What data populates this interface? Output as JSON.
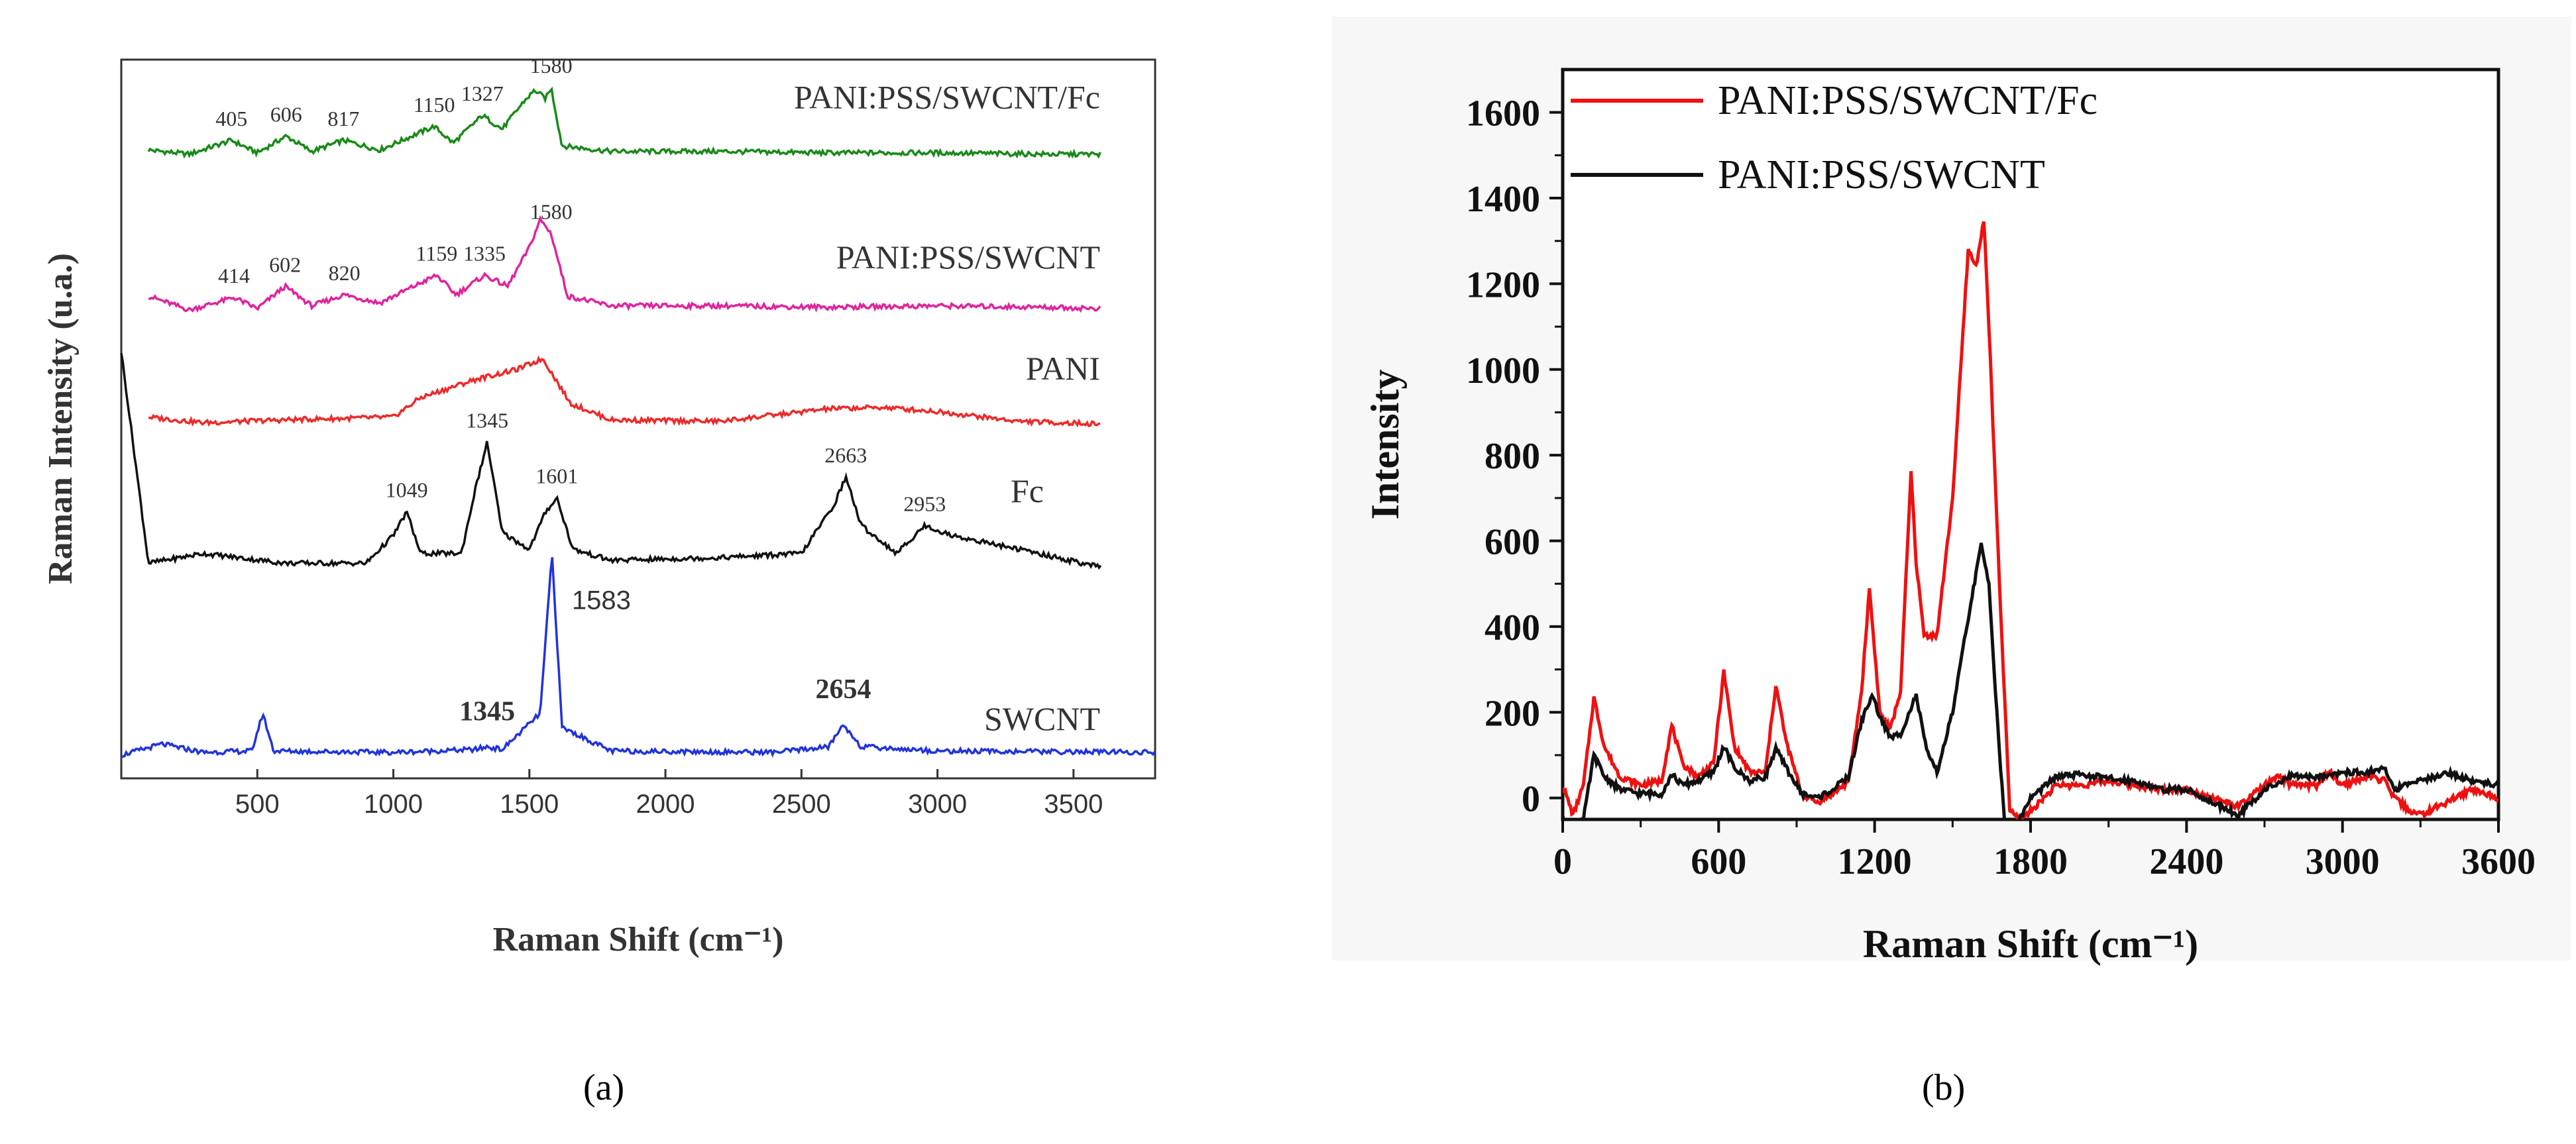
{
  "panel_labels": {
    "a": "(a)",
    "b": "(b)"
  },
  "chart_data": [
    {
      "type": "line",
      "panel": "a",
      "title": "",
      "xlabel": "Raman Shift (cm⁻¹)",
      "ylabel": "Raman Intensity (u.a.)",
      "xlim": [
        0,
        3800
      ],
      "x_ticks": [
        500,
        1000,
        1500,
        2000,
        2500,
        3000,
        3500
      ],
      "y_ticks": [],
      "stacked": true,
      "series": [
        {
          "name": "PANI:PSS/SWCNT/Fc",
          "color": "#1a8a1a",
          "baseline": 4.3,
          "x": [
            100,
            250,
            405,
            500,
            606,
            700,
            817,
            950,
            1150,
            1220,
            1327,
            1400,
            1480,
            1520,
            1560,
            1580,
            1620,
            1800,
            2200,
            2600,
            3000,
            3400,
            3600
          ],
          "y": [
            0.05,
            0.02,
            0.12,
            0.03,
            0.15,
            0.04,
            0.12,
            0.05,
            0.22,
            0.1,
            0.3,
            0.2,
            0.4,
            0.48,
            0.42,
            0.5,
            0.08,
            0.04,
            0.04,
            0.03,
            0.03,
            0.02,
            0.02
          ],
          "peak_labels": [
            {
              "x": 405,
              "text": "405"
            },
            {
              "x": 606,
              "text": "606"
            },
            {
              "x": 817,
              "text": "817"
            },
            {
              "x": 1150,
              "text": "1150"
            },
            {
              "x": 1327,
              "text": "1327"
            },
            {
              "x": 1580,
              "text": "1580"
            }
          ]
        },
        {
          "name": "PANI:PSS/SWCNT",
          "color": "#e0249e",
          "baseline": 3.15,
          "x": [
            100,
            250,
            414,
            500,
            602,
            700,
            820,
            950,
            1159,
            1230,
            1335,
            1420,
            1500,
            1540,
            1580,
            1640,
            1800,
            2200,
            2600,
            3000,
            3400,
            3600
          ],
          "y": [
            0.15,
            0.05,
            0.14,
            0.06,
            0.22,
            0.08,
            0.16,
            0.1,
            0.3,
            0.16,
            0.3,
            0.22,
            0.5,
            0.7,
            0.6,
            0.15,
            0.08,
            0.08,
            0.07,
            0.08,
            0.07,
            0.06
          ],
          "peak_labels": [
            {
              "x": 414,
              "text": "414"
            },
            {
              "x": 602,
              "text": "602"
            },
            {
              "x": 820,
              "text": "820"
            },
            {
              "x": 1159,
              "text": "1159"
            },
            {
              "x": 1335,
              "text": "1335"
            },
            {
              "x": 1580,
              "text": "1580"
            }
          ]
        },
        {
          "name": "PANI",
          "color": "#ee2a2a",
          "baseline": 2.35,
          "x": [
            100,
            300,
            600,
            800,
            1000,
            1100,
            1300,
            1450,
            1550,
            1650,
            1800,
            2200,
            2600,
            2800,
            3000,
            3300,
            3600
          ],
          "y": [
            0.08,
            0.04,
            0.06,
            0.07,
            0.08,
            0.22,
            0.35,
            0.42,
            0.5,
            0.18,
            0.06,
            0.05,
            0.14,
            0.15,
            0.12,
            0.05,
            0.03
          ],
          "peak_labels": []
        },
        {
          "name": "Fc",
          "color": "#111111",
          "baseline": 1.3,
          "x": [
            0,
            100,
            300,
            600,
            900,
            1000,
            1049,
            1100,
            1250,
            1300,
            1345,
            1400,
            1500,
            1560,
            1601,
            1660,
            1800,
            2200,
            2500,
            2620,
            2663,
            2720,
            2850,
            2953,
            3050,
            3300,
            3600
          ],
          "y": [
            1.6,
            0.08,
            0.15,
            0.08,
            0.08,
            0.28,
            0.45,
            0.15,
            0.15,
            0.6,
            0.95,
            0.3,
            0.18,
            0.45,
            0.55,
            0.18,
            0.1,
            0.12,
            0.15,
            0.5,
            0.7,
            0.35,
            0.15,
            0.35,
            0.28,
            0.18,
            0.05
          ],
          "peak_labels": [
            {
              "x": 1049,
              "text": "1049"
            },
            {
              "x": 1345,
              "text": "1345"
            },
            {
              "x": 1601,
              "text": "1601"
            },
            {
              "x": 2663,
              "text": "2663"
            },
            {
              "x": 2953,
              "text": "2953"
            }
          ]
        },
        {
          "name": "SWCNT",
          "color": "#2233dd",
          "baseline": 0.0,
          "x": [
            0,
            150,
            300,
            480,
            520,
            560,
            1000,
            1300,
            1345,
            1400,
            1540,
            1583,
            1620,
            1800,
            2400,
            2600,
            2654,
            2720,
            3000,
            3800
          ],
          "y": [
            0.0,
            0.08,
            0.02,
            0.03,
            0.3,
            0.03,
            0.02,
            0.04,
            0.06,
            0.04,
            0.3,
            1.45,
            0.2,
            0.03,
            0.02,
            0.06,
            0.22,
            0.06,
            0.03,
            0.02
          ],
          "peak_labels": [
            {
              "x": 1345,
              "text": "1345"
            },
            {
              "x": 1583,
              "text": "1583"
            },
            {
              "x": 2654,
              "text": "2654"
            }
          ]
        }
      ]
    },
    {
      "type": "line",
      "panel": "b",
      "title": "",
      "xlabel": "Raman Shift (cm⁻¹)",
      "ylabel": "Intensity",
      "xlim": [
        0,
        3600
      ],
      "ylim": [
        -50,
        1700
      ],
      "x_ticks": [
        0,
        600,
        1200,
        1800,
        2400,
        3000,
        3600
      ],
      "y_ticks": [
        0,
        200,
        400,
        600,
        800,
        1000,
        1200,
        1400,
        1600
      ],
      "legend_position": "top-left",
      "series": [
        {
          "name": "PANI:PSS/SWCNT/Fc",
          "color": "#ee1111",
          "x": [
            0,
            40,
            80,
            120,
            160,
            220,
            300,
            380,
            420,
            460,
            520,
            580,
            620,
            660,
            720,
            780,
            820,
            860,
            920,
            980,
            1040,
            1100,
            1150,
            1180,
            1220,
            1260,
            1300,
            1340,
            1360,
            1390,
            1440,
            1500,
            1560,
            1590,
            1620,
            1640,
            1680,
            1720,
            1760,
            1800,
            1900,
            2000,
            2100,
            2200,
            2300,
            2400,
            2500,
            2600,
            2700,
            2760,
            2800,
            2900,
            2950,
            3000,
            3100,
            3160,
            3200,
            3260,
            3300,
            3400,
            3500,
            3600
          ],
          "y": [
            30,
            -40,
            30,
            235,
            120,
            50,
            30,
            40,
            170,
            80,
            50,
            80,
            295,
            120,
            60,
            60,
            265,
            130,
            10,
            -10,
            10,
            40,
            250,
            490,
            200,
            160,
            250,
            760,
            550,
            380,
            380,
            700,
            1280,
            1240,
            1350,
            1100,
            500,
            -30,
            -50,
            -30,
            30,
            30,
            40,
            30,
            20,
            20,
            0,
            -20,
            30,
            50,
            30,
            30,
            60,
            30,
            50,
            40,
            0,
            -30,
            -40,
            -10,
            20,
            0
          ]
        },
        {
          "name": "PANI:PSS/SWCNT",
          "color": "#111111",
          "x": [
            0,
            40,
            80,
            120,
            160,
            220,
            300,
            380,
            420,
            460,
            520,
            580,
            620,
            660,
            720,
            780,
            820,
            860,
            920,
            980,
            1040,
            1100,
            1150,
            1190,
            1220,
            1260,
            1300,
            1360,
            1400,
            1440,
            1500,
            1560,
            1610,
            1640,
            1670,
            1700,
            1750,
            1800,
            1900,
            2000,
            2100,
            2200,
            2300,
            2400,
            2500,
            2600,
            2700,
            2800,
            2900,
            3000,
            3100,
            3160,
            3200,
            3300,
            3400,
            3500,
            3600
          ],
          "y": [
            -60,
            -60,
            -50,
            100,
            50,
            20,
            10,
            10,
            55,
            30,
            40,
            60,
            120,
            70,
            40,
            50,
            115,
            70,
            10,
            0,
            20,
            50,
            180,
            240,
            190,
            140,
            150,
            240,
            110,
            60,
            200,
            420,
            590,
            500,
            200,
            -60,
            -60,
            0,
            50,
            55,
            45,
            40,
            20,
            20,
            -10,
            -40,
            20,
            50,
            50,
            60,
            60,
            70,
            20,
            40,
            60,
            40,
            30
          ]
        }
      ]
    }
  ]
}
